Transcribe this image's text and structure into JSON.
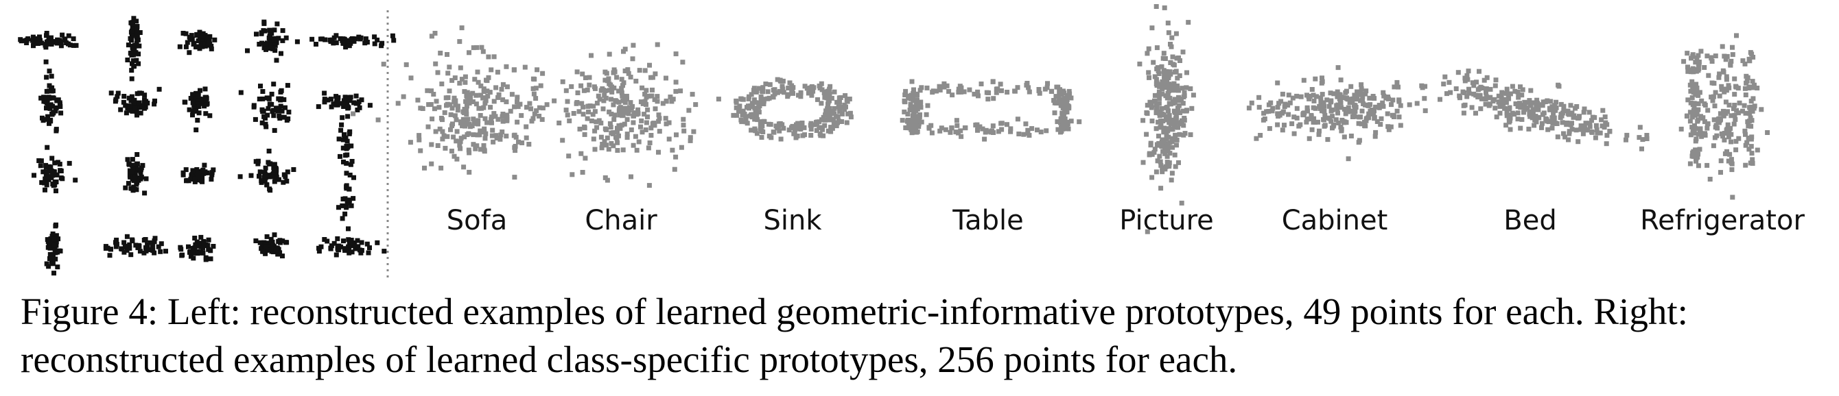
{
  "figure": {
    "left_panel": {
      "description_points_per_prototype": 49,
      "grid_rows": 4,
      "grid_cols": 5,
      "point_color": "#111111"
    },
    "divider": {
      "style": "dotted",
      "color": "#888888"
    },
    "right_panel": {
      "points_per_prototype": 256,
      "point_color": "#8c8c8c",
      "classes": [
        {
          "label": "Sofa",
          "shape": "blob"
        },
        {
          "label": "Chair",
          "shape": "blob"
        },
        {
          "label": "Sink",
          "shape": "bowl"
        },
        {
          "label": "Table",
          "shape": "flat-rect"
        },
        {
          "label": "Picture",
          "shape": "vertical"
        },
        {
          "label": "Cabinet",
          "shape": "flat-band"
        },
        {
          "label": "Bed",
          "shape": "diagonal-band"
        },
        {
          "label": "Refrigerator",
          "shape": "tall-outline"
        }
      ]
    }
  },
  "caption": {
    "text": "Figure 4: Left: reconstructed examples of learned geometric-informative prototypes, 49 points for each. Right: reconstructed examples of learned class-specific prototypes, 256 points for each."
  }
}
